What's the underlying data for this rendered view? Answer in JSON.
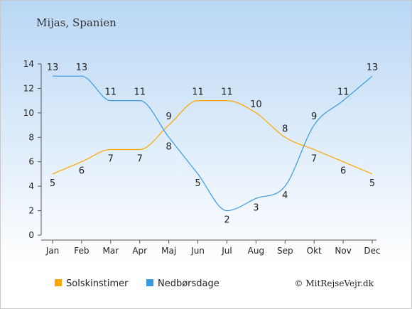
{
  "chart_data": {
    "type": "line",
    "title": "Mijas, Spanien",
    "categories": [
      "Jan",
      "Feb",
      "Mar",
      "Apr",
      "Maj",
      "Jun",
      "Jul",
      "Aug",
      "Sep",
      "Okt",
      "Nov",
      "Dec"
    ],
    "series": [
      {
        "name": "Solskinstimer",
        "color": "#ffa500",
        "values": [
          5,
          6,
          7,
          7,
          9,
          11,
          11,
          10,
          8,
          7,
          6,
          5
        ]
      },
      {
        "name": "Nedbørsdage",
        "color": "#3a9ae0",
        "values": [
          13,
          13,
          11,
          11,
          8,
          5,
          2,
          3,
          4,
          9,
          11,
          13
        ]
      }
    ],
    "ylim": [
      0,
      14
    ],
    "yticks": [
      0,
      2,
      4,
      6,
      8,
      10,
      12,
      14
    ],
    "grid": false,
    "legend": "bottom-left",
    "credit": "© MitRejseVejr.dk"
  },
  "colors": {
    "background_top": "#b9d7f5",
    "background_bottom": "#ffffff",
    "axis": "#555555"
  }
}
